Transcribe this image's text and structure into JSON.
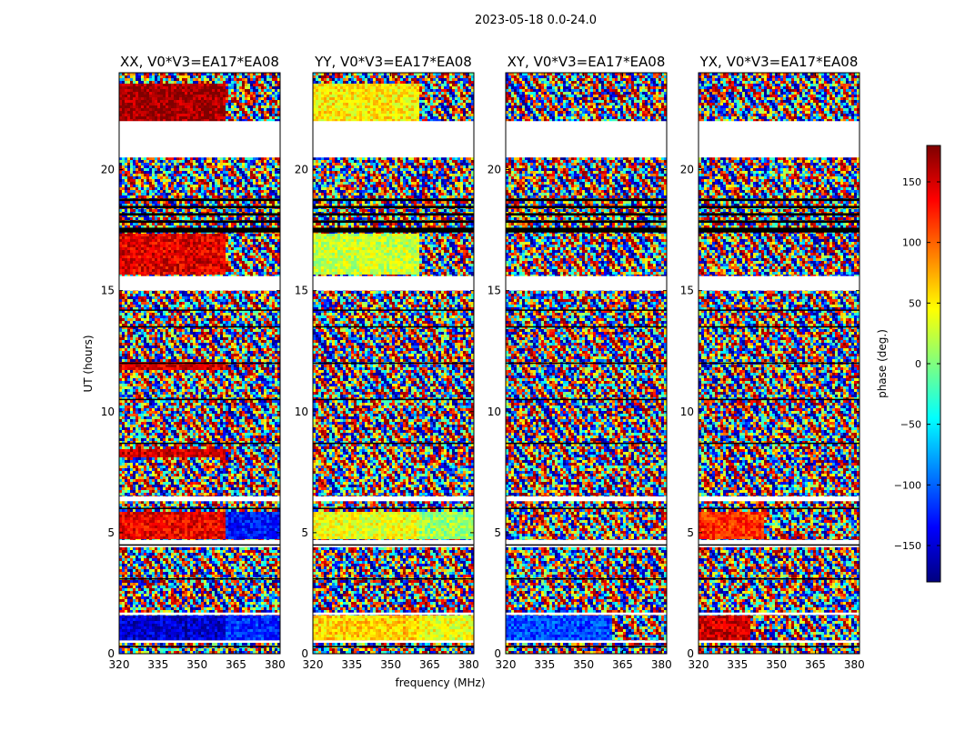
{
  "figure": {
    "suptitle": "2023-05-18 0.0-24.0",
    "xlabel": "frequency (MHz)",
    "ylabel": "UT (hours)"
  },
  "colorbar": {
    "label": "phase (deg.)",
    "range": [
      -180,
      180
    ],
    "ticks": [
      150,
      100,
      50,
      0,
      -50,
      -100,
      -150
    ],
    "tick_labels": [
      "150",
      "100",
      "50",
      "0",
      "−50",
      "−100",
      "−150"
    ],
    "colormap": [
      "#00007f",
      "#0000ff",
      "#007fff",
      "#00ffff",
      "#7fff7f",
      "#ffff00",
      "#ff7f00",
      "#ff0000",
      "#7f0000"
    ]
  },
  "chart_data": [
    {
      "type": "heatmap",
      "title": "XX, V0*V3=EA17*EA08",
      "xlim": [
        320,
        382
      ],
      "ylim": [
        0,
        24
      ],
      "xticks": [
        320,
        335,
        350,
        365,
        380
      ],
      "xtick_labels": [
        "320",
        "335",
        "350",
        "365",
        "380"
      ],
      "yticks": [
        0,
        5,
        10,
        15,
        20
      ],
      "ytick_labels": [
        "0",
        "5",
        "10",
        "15",
        "20"
      ],
      "bands": [
        {
          "t0": 0.5,
          "t1": 1.6,
          "f_split": 361,
          "left_phase": -150,
          "right_phase": -120
        },
        {
          "t0": 4.7,
          "t1": 5.9,
          "f_split": 361,
          "left_phase": 140,
          "right_phase": -130
        },
        {
          "t0": 8.1,
          "t1": 8.5,
          "f_split": 361,
          "left_phase": 150,
          "right_phase": null
        },
        {
          "t0": 11.7,
          "t1": 12.0,
          "f_split": 361,
          "left_phase": 150,
          "right_phase": null
        },
        {
          "t0": 15.7,
          "t1": 17.3,
          "f_split": 361,
          "left_phase": 145,
          "right_phase": null
        },
        {
          "t0": 22.0,
          "t1": 23.6,
          "f_split": 361,
          "left_phase": 170,
          "right_phase": null
        }
      ]
    },
    {
      "type": "heatmap",
      "title": "YY, V0*V3=EA17*EA08",
      "xlim": [
        320,
        382
      ],
      "ylim": [
        0,
        24
      ],
      "xticks": [
        320,
        335,
        350,
        365,
        380
      ],
      "xtick_labels": [
        "320",
        "335",
        "350",
        "365",
        "380"
      ],
      "yticks": [
        0,
        5,
        10,
        15,
        20
      ],
      "ytick_labels": [
        "0",
        "5",
        "10",
        "15",
        "20"
      ],
      "bands": [
        {
          "t0": 0.5,
          "t1": 1.6,
          "f_split": 361,
          "left_phase": 60,
          "right_phase": 40
        },
        {
          "t0": 4.7,
          "t1": 5.9,
          "f_split": 361,
          "left_phase": 40,
          "right_phase": 10
        },
        {
          "t0": 15.7,
          "t1": 17.3,
          "f_split": 361,
          "left_phase": 25,
          "right_phase": null
        },
        {
          "t0": 22.0,
          "t1": 23.6,
          "f_split": 361,
          "left_phase": 50,
          "right_phase": null
        }
      ]
    },
    {
      "type": "heatmap",
      "title": "XY, V0*V3=EA17*EA08",
      "xlim": [
        320,
        382
      ],
      "ylim": [
        0,
        24
      ],
      "xticks": [
        320,
        335,
        350,
        365,
        380
      ],
      "xtick_labels": [
        "320",
        "335",
        "350",
        "365",
        "380"
      ],
      "yticks": [
        0,
        5,
        10,
        15,
        20
      ],
      "ytick_labels": [
        "0",
        "5",
        "10",
        "15",
        "20"
      ],
      "bands": [
        {
          "t0": 0.5,
          "t1": 1.6,
          "f_split": 361,
          "left_phase": -110,
          "right_phase": null
        }
      ]
    },
    {
      "type": "heatmap",
      "title": "YX, V0*V3=EA17*EA08",
      "xlim": [
        320,
        382
      ],
      "ylim": [
        0,
        24
      ],
      "xticks": [
        320,
        335,
        350,
        365,
        380
      ],
      "xtick_labels": [
        "320",
        "335",
        "350",
        "365",
        "380"
      ],
      "yticks": [
        0,
        5,
        10,
        15,
        20
      ],
      "ytick_labels": [
        "0",
        "5",
        "10",
        "15",
        "20"
      ],
      "bands": [
        {
          "t0": 0.5,
          "t1": 1.6,
          "f_split": 340,
          "left_phase": 150,
          "right_phase": null
        },
        {
          "t0": 4.7,
          "t1": 5.9,
          "f_split": 345,
          "left_phase": 120,
          "right_phase": null
        }
      ]
    }
  ],
  "gaps": {
    "blank": [
      [
        0.45,
        0.55
      ],
      [
        1.6,
        1.7
      ],
      [
        4.4,
        4.7
      ],
      [
        6.3,
        6.5
      ],
      [
        15.0,
        15.6
      ],
      [
        20.5,
        22.0
      ]
    ],
    "black_lines": [
      [
        0.3,
        0.32
      ],
      [
        3.1,
        3.12
      ],
      [
        4.5,
        4.52
      ],
      [
        6.0,
        6.03
      ],
      [
        8.7,
        8.72
      ],
      [
        10.5,
        10.53
      ],
      [
        12.0,
        12.03
      ],
      [
        13.5,
        13.53
      ],
      [
        14.2,
        14.22
      ],
      [
        17.4,
        17.6
      ],
      [
        17.8,
        17.9
      ],
      [
        18.1,
        18.2
      ],
      [
        18.4,
        18.5
      ],
      [
        18.7,
        18.8
      ]
    ]
  }
}
